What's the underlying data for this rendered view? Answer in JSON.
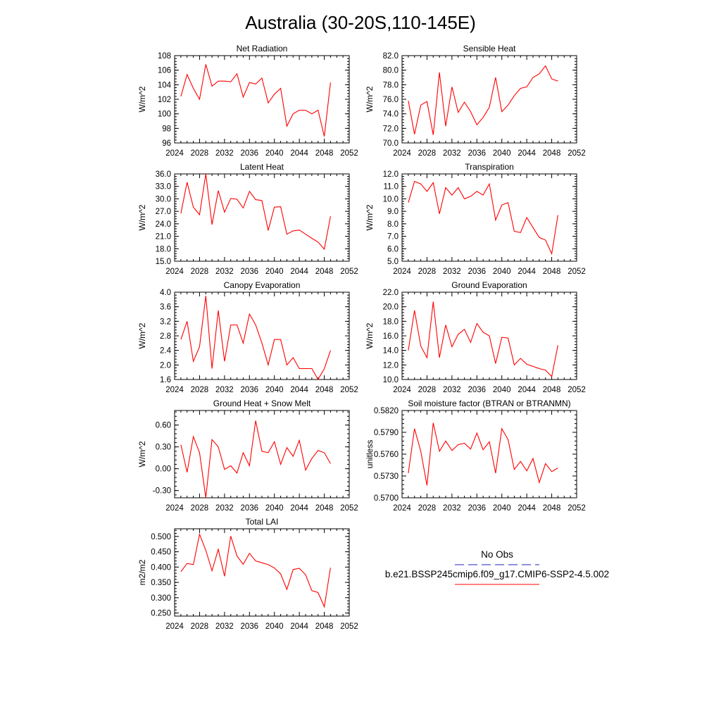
{
  "title": "Australia (30-20S,110-145E)",
  "colors": {
    "model": "#ff0000",
    "obs": "#2222bb"
  },
  "legend": {
    "obs_label": "No Obs",
    "model_label": "b.e21.BSSP245cmip6.f09_g17.CMIP6-SSP2-4.5.002"
  },
  "chart_data": [
    {
      "type": "line",
      "title": "Net Radiation",
      "ylabel": "W/m^2",
      "xlim": [
        2024,
        2052
      ],
      "ylim": [
        96,
        108
      ],
      "x_ticks": [
        "2024",
        "2028",
        "2032",
        "2036",
        "2040",
        "2044",
        "2048",
        "2052"
      ],
      "y_ticks": [
        "96",
        "98",
        "100",
        "102",
        "104",
        "106",
        "108"
      ],
      "series": [
        {
          "x": [
            2025,
            2026,
            2027,
            2028,
            2029,
            2030,
            2031,
            2032,
            2033,
            2034,
            2035,
            2036,
            2037,
            2038,
            2039,
            2040,
            2041,
            2042,
            2043,
            2044,
            2045,
            2046,
            2047,
            2048,
            2049
          ],
          "values": [
            102.4,
            105.4,
            103.5,
            102.0,
            106.8,
            103.8,
            104.5,
            104.5,
            104.4,
            105.5,
            102.3,
            104.3,
            104.1,
            104.9,
            101.5,
            102.7,
            103.5,
            98.3,
            100.0,
            100.5,
            100.5,
            100.0,
            100.5,
            96.9,
            104.3
          ]
        }
      ]
    },
    {
      "type": "line",
      "title": "Sensible Heat",
      "ylabel": "W/m^2",
      "xlim": [
        2024,
        2052
      ],
      "ylim": [
        70,
        82
      ],
      "x_ticks": [
        "2024",
        "2028",
        "2032",
        "2036",
        "2040",
        "2044",
        "2048",
        "2052"
      ],
      "y_ticks": [
        "70.0",
        "72.0",
        "74.0",
        "76.0",
        "78.0",
        "80.0",
        "82.0"
      ],
      "series": [
        {
          "x": [
            2025,
            2026,
            2027,
            2028,
            2029,
            2030,
            2031,
            2032,
            2033,
            2034,
            2035,
            2036,
            2037,
            2038,
            2039,
            2040,
            2041,
            2042,
            2043,
            2044,
            2045,
            2046,
            2047,
            2048,
            2049
          ],
          "values": [
            75.8,
            71.2,
            75.2,
            75.7,
            71.1,
            79.7,
            72.3,
            77.7,
            74.2,
            75.6,
            74.3,
            72.5,
            73.5,
            74.9,
            79.0,
            74.3,
            75.2,
            76.5,
            77.5,
            77.7,
            79.0,
            79.5,
            80.6,
            78.8,
            78.5
          ]
        }
      ]
    },
    {
      "type": "line",
      "title": "Latent Heat",
      "ylabel": "W/m^2",
      "xlim": [
        2024,
        2052
      ],
      "ylim": [
        15,
        36
      ],
      "x_ticks": [
        "2024",
        "2028",
        "2032",
        "2036",
        "2040",
        "2044",
        "2048",
        "2052"
      ],
      "y_ticks": [
        "15.0",
        "18.0",
        "21.0",
        "24.0",
        "27.0",
        "30.0",
        "33.0",
        "36.0"
      ],
      "series": [
        {
          "x": [
            2025,
            2026,
            2027,
            2028,
            2029,
            2030,
            2031,
            2032,
            2033,
            2034,
            2035,
            2036,
            2037,
            2038,
            2039,
            2040,
            2041,
            2042,
            2043,
            2044,
            2045,
            2046,
            2047,
            2048,
            2049
          ],
          "values": [
            26.5,
            34.0,
            28.0,
            26.2,
            36.0,
            23.8,
            32.0,
            26.8,
            30.1,
            29.9,
            27.8,
            31.8,
            29.8,
            29.6,
            22.4,
            28.0,
            28.1,
            21.5,
            22.3,
            22.5,
            21.5,
            20.5,
            19.6,
            17.9,
            25.8
          ]
        }
      ]
    },
    {
      "type": "line",
      "title": "Transpiration",
      "ylabel": "W/m^2",
      "xlim": [
        2024,
        2052
      ],
      "ylim": [
        5,
        12
      ],
      "x_ticks": [
        "2024",
        "2028",
        "2032",
        "2036",
        "2040",
        "2044",
        "2048",
        "2052"
      ],
      "y_ticks": [
        "5.0",
        "6.0",
        "7.0",
        "8.0",
        "9.0",
        "10.0",
        "11.0",
        "12.0"
      ],
      "series": [
        {
          "x": [
            2025,
            2026,
            2027,
            2028,
            2029,
            2030,
            2031,
            2032,
            2033,
            2034,
            2035,
            2036,
            2037,
            2038,
            2039,
            2040,
            2041,
            2042,
            2043,
            2044,
            2045,
            2046,
            2047,
            2048,
            2049
          ],
          "values": [
            9.7,
            11.4,
            11.2,
            10.6,
            11.3,
            8.8,
            10.9,
            10.3,
            10.9,
            10.0,
            10.2,
            10.6,
            10.3,
            11.2,
            8.3,
            9.5,
            9.7,
            7.4,
            7.3,
            8.5,
            7.7,
            6.9,
            6.7,
            5.6,
            8.7
          ]
        }
      ]
    },
    {
      "type": "line",
      "title": "Canopy Evaporation",
      "ylabel": "W/m^2",
      "xlim": [
        2024,
        2052
      ],
      "ylim": [
        1.6,
        4.0
      ],
      "x_ticks": [
        "2024",
        "2028",
        "2032",
        "2036",
        "2040",
        "2044",
        "2048",
        "2052"
      ],
      "y_ticks": [
        "1.6",
        "2.0",
        "2.4",
        "2.8",
        "3.2",
        "3.6",
        "4.0"
      ],
      "series": [
        {
          "x": [
            2025,
            2026,
            2027,
            2028,
            2029,
            2030,
            2031,
            2032,
            2033,
            2034,
            2035,
            2036,
            2037,
            2038,
            2039,
            2040,
            2041,
            2042,
            2043,
            2044,
            2045,
            2046,
            2047,
            2048,
            2049
          ],
          "values": [
            2.7,
            3.2,
            2.1,
            2.5,
            3.9,
            1.9,
            3.5,
            2.1,
            3.1,
            3.1,
            2.6,
            3.4,
            3.1,
            2.6,
            2.0,
            2.7,
            2.7,
            2.0,
            2.2,
            1.9,
            1.9,
            1.9,
            1.6,
            1.9,
            2.4
          ]
        }
      ]
    },
    {
      "type": "line",
      "title": "Ground Evaporation",
      "ylabel": "W/m^2",
      "xlim": [
        2024,
        2052
      ],
      "ylim": [
        10,
        22
      ],
      "x_ticks": [
        "2024",
        "2028",
        "2032",
        "2036",
        "2040",
        "2044",
        "2048",
        "2052"
      ],
      "y_ticks": [
        "10.0",
        "12.0",
        "14.0",
        "16.0",
        "18.0",
        "20.0",
        "22.0"
      ],
      "series": [
        {
          "x": [
            2025,
            2026,
            2027,
            2028,
            2029,
            2030,
            2031,
            2032,
            2033,
            2034,
            2035,
            2036,
            2037,
            2038,
            2039,
            2040,
            2041,
            2042,
            2043,
            2044,
            2045,
            2046,
            2047,
            2048,
            2049
          ],
          "values": [
            14.0,
            19.5,
            14.6,
            13.0,
            20.7,
            13.0,
            17.5,
            14.5,
            16.2,
            16.9,
            15.1,
            17.7,
            16.5,
            16.0,
            12.2,
            15.8,
            15.7,
            12.0,
            12.9,
            12.1,
            11.8,
            11.5,
            11.3,
            10.4,
            14.7
          ]
        }
      ]
    },
    {
      "type": "line",
      "title": "Ground Heat + Snow Melt",
      "ylabel": "W/m^2",
      "xlim": [
        2024,
        2052
      ],
      "ylim": [
        -0.4,
        0.8
      ],
      "x_ticks": [
        "2024",
        "2028",
        "2032",
        "2036",
        "2040",
        "2044",
        "2048",
        "2052"
      ],
      "y_ticks": [
        "-0.30",
        "0.00",
        "0.30",
        "0.60"
      ],
      "y_tick_values": [
        -0.3,
        0.0,
        0.3,
        0.6
      ],
      "series": [
        {
          "x": [
            2025,
            2026,
            2027,
            2028,
            2029,
            2030,
            2031,
            2032,
            2033,
            2034,
            2035,
            2036,
            2037,
            2038,
            2039,
            2040,
            2041,
            2042,
            2043,
            2044,
            2045,
            2046,
            2047,
            2048,
            2049
          ],
          "values": [
            0.33,
            -0.05,
            0.44,
            0.22,
            -0.4,
            0.4,
            0.3,
            -0.01,
            0.04,
            -0.06,
            0.22,
            0.04,
            0.66,
            0.24,
            0.22,
            0.37,
            0.06,
            0.29,
            0.17,
            0.39,
            -0.02,
            0.14,
            0.25,
            0.22,
            0.07
          ]
        }
      ]
    },
    {
      "type": "line",
      "title": "Soil moisture factor (BTRAN or BTRANMN)",
      "ylabel": "unitless",
      "xlim": [
        2024,
        2052
      ],
      "ylim": [
        0.57,
        0.582
      ],
      "x_ticks": [
        "2024",
        "2028",
        "2032",
        "2036",
        "2040",
        "2044",
        "2048",
        "2052"
      ],
      "y_ticks": [
        "0.5700",
        "0.5730",
        "0.5760",
        "0.5790",
        "0.5820"
      ],
      "series": [
        {
          "x": [
            2025,
            2026,
            2027,
            2028,
            2029,
            2030,
            2031,
            2032,
            2033,
            2034,
            2035,
            2036,
            2037,
            2038,
            2039,
            2040,
            2041,
            2042,
            2043,
            2044,
            2045,
            2046,
            2047,
            2048,
            2049
          ],
          "values": [
            0.5734,
            0.5795,
            0.5764,
            0.5717,
            0.5803,
            0.5764,
            0.5778,
            0.5765,
            0.5773,
            0.5775,
            0.5767,
            0.5789,
            0.5766,
            0.5777,
            0.5734,
            0.5795,
            0.578,
            0.5739,
            0.575,
            0.5737,
            0.5754,
            0.5721,
            0.5747,
            0.5736,
            0.5741
          ]
        }
      ]
    },
    {
      "type": "line",
      "title": "Total LAI",
      "ylabel": "m2/m2",
      "xlim": [
        2024,
        2052
      ],
      "ylim": [
        0.24,
        0.525
      ],
      "x_ticks": [
        "2024",
        "2028",
        "2032",
        "2036",
        "2040",
        "2044",
        "2048",
        "2052"
      ],
      "y_ticks": [
        "0.250",
        "0.300",
        "0.350",
        "0.400",
        "0.450",
        "0.500"
      ],
      "y_tick_values": [
        0.25,
        0.3,
        0.35,
        0.4,
        0.45,
        0.5
      ],
      "series": [
        {
          "x": [
            2025,
            2026,
            2027,
            2028,
            2029,
            2030,
            2031,
            2032,
            2033,
            2034,
            2035,
            2036,
            2037,
            2038,
            2039,
            2040,
            2041,
            2042,
            2043,
            2044,
            2045,
            2046,
            2047,
            2048,
            2049
          ],
          "values": [
            0.385,
            0.412,
            0.408,
            0.507,
            0.455,
            0.388,
            0.458,
            0.37,
            0.501,
            0.436,
            0.409,
            0.445,
            0.42,
            0.414,
            0.408,
            0.397,
            0.378,
            0.327,
            0.392,
            0.396,
            0.375,
            0.323,
            0.317,
            0.27,
            0.398
          ]
        }
      ]
    }
  ]
}
